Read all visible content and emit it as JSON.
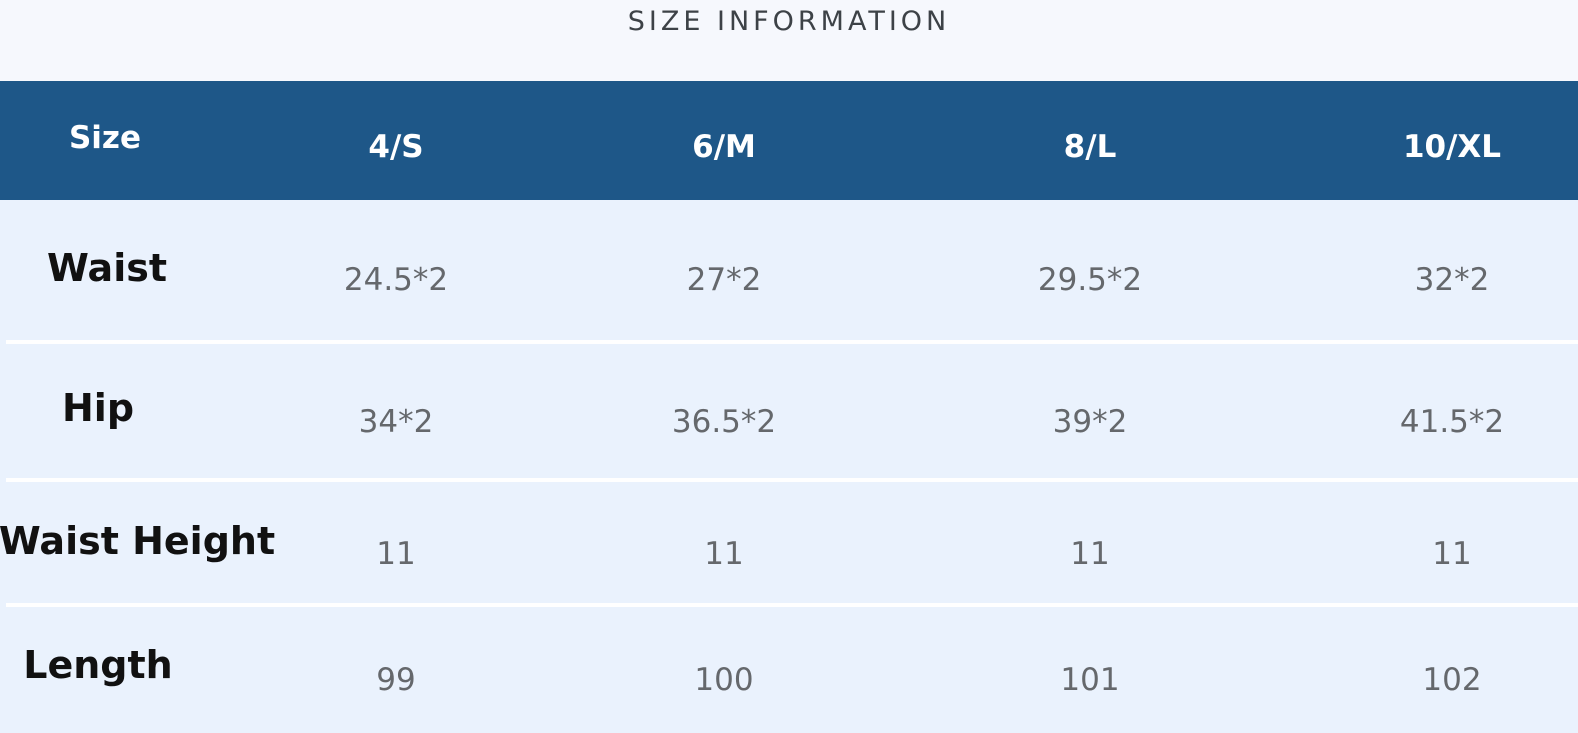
{
  "title": "SIZE INFORMATION",
  "table": {
    "header": [
      "Size",
      "4/S",
      "6/M",
      "8/L",
      "10/XL"
    ],
    "rows": [
      [
        "Waist",
        "24.5*2",
        "27*2",
        "29.5*2",
        "32*2"
      ],
      [
        "Hip",
        "34*2",
        "36.5*2",
        "39*2",
        "41.5*2"
      ],
      [
        "Waist Height",
        "11",
        "11",
        "11",
        "11"
      ],
      [
        "Length",
        "99",
        "100",
        "101",
        "102"
      ]
    ]
  }
}
